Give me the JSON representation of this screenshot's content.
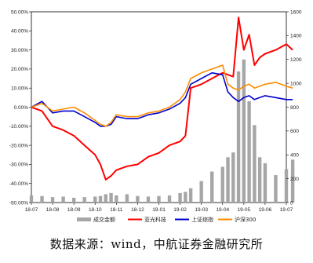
{
  "chart_data": {
    "type": "line",
    "title": "",
    "xlabel": "",
    "ylabel": "",
    "x_ticks": [
      "18-07",
      "18-08",
      "18-09",
      "18-10",
      "18-11",
      "18-12",
      "19-01",
      "19-02",
      "19-03",
      "19-04",
      "19-05",
      "19-06",
      "19-07"
    ],
    "y_left": {
      "ticks": [
        "-50.00%",
        "-40.00%",
        "-30.00%",
        "-20.00%",
        "-10.00%",
        "0.00%",
        "10.00%",
        "20.00%",
        "30.00%",
        "40.00%",
        "50.00%"
      ],
      "lim": [
        -0.5,
        0.5
      ]
    },
    "y_right": {
      "ticks": [
        "0",
        "200",
        "400",
        "600",
        "800",
        "1000",
        "1200",
        "1400",
        "1600"
      ],
      "lim": [
        0,
        1600
      ]
    },
    "grid": false,
    "legend_position": "bottom",
    "x_index": [
      0,
      0.5,
      1,
      1.5,
      2,
      2.5,
      3,
      3.25,
      3.5,
      3.75,
      4,
      4.5,
      5,
      5.5,
      6,
      6.5,
      7,
      7.25,
      7.5,
      8,
      8.5,
      9,
      9.25,
      9.5,
      9.75,
      10,
      10.25,
      10.5,
      10.75,
      11,
      11.5,
      12,
      12.3
    ],
    "series": [
      {
        "name": "成交金额",
        "type": "bar",
        "axis": "right",
        "color": "#a6a6a6",
        "values": [
          60,
          55,
          45,
          50,
          40,
          45,
          50,
          55,
          70,
          80,
          60,
          70,
          55,
          50,
          55,
          60,
          80,
          90,
          120,
          180,
          260,
          300,
          380,
          420,
          1100,
          1200,
          850,
          650,
          380,
          330,
          230,
          280,
          360
        ]
      },
      {
        "name": "亚光科技",
        "type": "line",
        "axis": "left",
        "color": "#ff0000",
        "values": [
          0.0,
          -0.02,
          -0.1,
          -0.12,
          -0.15,
          -0.2,
          -0.25,
          -0.3,
          -0.38,
          -0.36,
          -0.33,
          -0.31,
          -0.3,
          -0.26,
          -0.24,
          -0.2,
          -0.18,
          -0.15,
          0.1,
          0.12,
          0.15,
          0.18,
          0.17,
          0.16,
          0.47,
          0.3,
          0.38,
          0.22,
          0.26,
          0.28,
          0.3,
          0.33,
          0.3
        ]
      },
      {
        "name": "上证综指",
        "type": "line",
        "axis": "left",
        "color": "#0000cc",
        "values": [
          0.0,
          0.03,
          -0.03,
          -0.02,
          -0.02,
          -0.05,
          -0.08,
          -0.1,
          -0.1,
          -0.09,
          -0.05,
          -0.06,
          -0.06,
          -0.04,
          -0.03,
          -0.01,
          0.02,
          0.05,
          0.12,
          0.15,
          0.18,
          0.17,
          0.08,
          0.05,
          0.03,
          0.05,
          0.06,
          0.04,
          0.05,
          0.06,
          0.05,
          0.04,
          0.04
        ]
      },
      {
        "name": "沪深300",
        "type": "line",
        "axis": "left",
        "color": "#ff8c00",
        "values": [
          0.0,
          0.02,
          -0.02,
          -0.01,
          0.0,
          -0.03,
          -0.07,
          -0.09,
          -0.1,
          -0.08,
          -0.04,
          -0.05,
          -0.05,
          -0.03,
          -0.02,
          0.0,
          0.04,
          0.08,
          0.15,
          0.18,
          0.2,
          0.22,
          0.12,
          0.1,
          0.09,
          0.11,
          0.12,
          0.1,
          0.11,
          0.12,
          0.13,
          0.11,
          0.1
        ]
      }
    ]
  },
  "source_note": "数据来源：wind，中航证券金融研究所"
}
